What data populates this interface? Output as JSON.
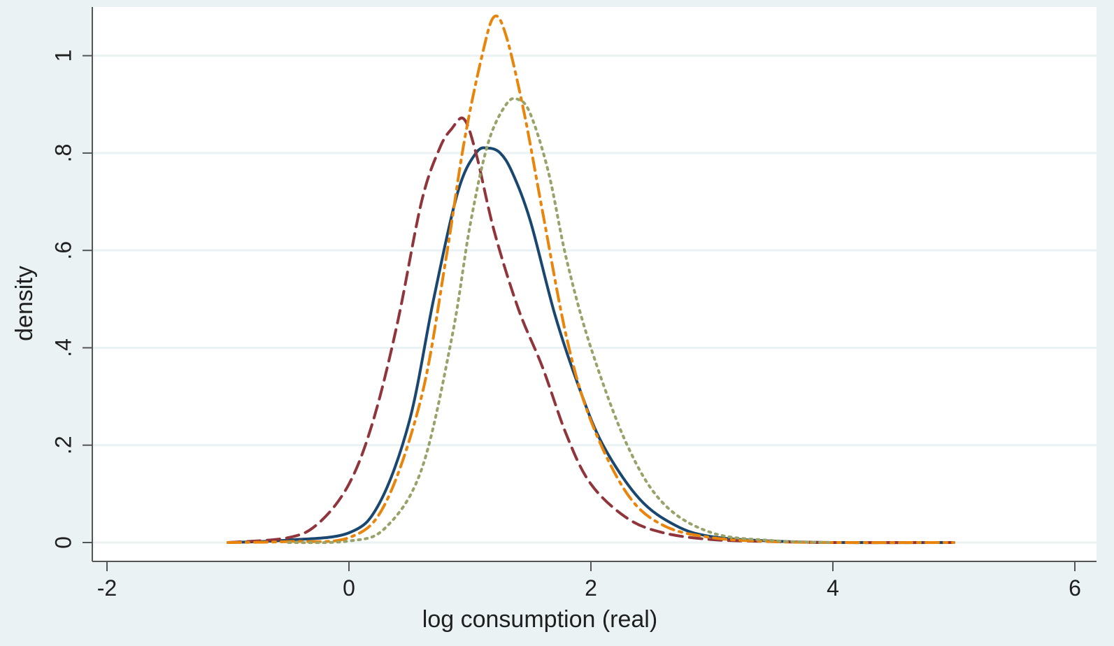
{
  "chart_data": {
    "type": "line",
    "title": "",
    "xlabel": "log consumption (real)",
    "ylabel": "density",
    "xlim": [
      -2,
      6
    ],
    "ylim": [
      0,
      1.1
    ],
    "xticks": [
      -2,
      0,
      2,
      4,
      6
    ],
    "xtick_labels": [
      "-2",
      "0",
      "2",
      "4",
      "6"
    ],
    "yticks": [
      0,
      0.2,
      0.4,
      0.6,
      0.8,
      1
    ],
    "ytick_labels": [
      "0",
      ".2",
      ".4",
      ".6",
      ".8",
      "1"
    ],
    "grid": true,
    "legend": "none",
    "colors": {
      "background": "#eaf2f3",
      "plot_area": "#ffffff",
      "grid": "#eaf2f3",
      "axis": "#555555",
      "text": "#1f1f1f"
    },
    "series": [
      {
        "color": "#1a476f",
        "dash": "solid",
        "x": [
          -1.0,
          -0.5,
          0.0,
          0.25,
          0.5,
          0.7,
          0.9,
          1.05,
          1.15,
          1.25,
          1.35,
          1.5,
          1.7,
          1.9,
          2.1,
          2.4,
          2.7,
          3.0,
          3.5,
          4.0,
          5.0
        ],
        "y": [
          0.0,
          0.005,
          0.02,
          0.08,
          0.25,
          0.5,
          0.72,
          0.8,
          0.81,
          0.8,
          0.76,
          0.66,
          0.47,
          0.32,
          0.2,
          0.09,
          0.035,
          0.012,
          0.003,
          0.0,
          0.0
        ]
      },
      {
        "color": "#90353b",
        "dash": "dashed",
        "x": [
          -1.0,
          -0.5,
          -0.25,
          0.0,
          0.2,
          0.4,
          0.6,
          0.75,
          0.85,
          0.95,
          1.05,
          1.2,
          1.4,
          1.6,
          1.8,
          2.0,
          2.3,
          2.6,
          3.0,
          3.5,
          4.0,
          5.0
        ],
        "y": [
          0.0,
          0.01,
          0.04,
          0.12,
          0.25,
          0.45,
          0.7,
          0.81,
          0.85,
          0.87,
          0.8,
          0.64,
          0.48,
          0.36,
          0.22,
          0.12,
          0.05,
          0.02,
          0.006,
          0.002,
          0.0,
          0.0
        ]
      },
      {
        "color": "#e8850a",
        "dash": "dashdot",
        "x": [
          -1.0,
          -0.5,
          0.0,
          0.3,
          0.6,
          0.8,
          0.95,
          1.1,
          1.2,
          1.3,
          1.45,
          1.6,
          1.8,
          2.0,
          2.3,
          2.6,
          3.0,
          3.5,
          4.0,
          5.0
        ],
        "y": [
          0.0,
          0.002,
          0.01,
          0.08,
          0.3,
          0.58,
          0.82,
          1.0,
          1.08,
          1.04,
          0.88,
          0.68,
          0.42,
          0.25,
          0.1,
          0.035,
          0.01,
          0.002,
          0.0,
          0.0
        ]
      },
      {
        "color": "#98a36a",
        "dash": "dotted",
        "x": [
          -0.5,
          0.0,
          0.3,
          0.6,
          0.85,
          1.0,
          1.15,
          1.3,
          1.4,
          1.5,
          1.65,
          1.8,
          2.0,
          2.3,
          2.6,
          3.0,
          3.5,
          4.0
        ],
        "y": [
          0.0,
          0.003,
          0.03,
          0.15,
          0.42,
          0.65,
          0.82,
          0.9,
          0.91,
          0.88,
          0.76,
          0.58,
          0.4,
          0.2,
          0.08,
          0.02,
          0.004,
          0.0
        ]
      }
    ]
  }
}
